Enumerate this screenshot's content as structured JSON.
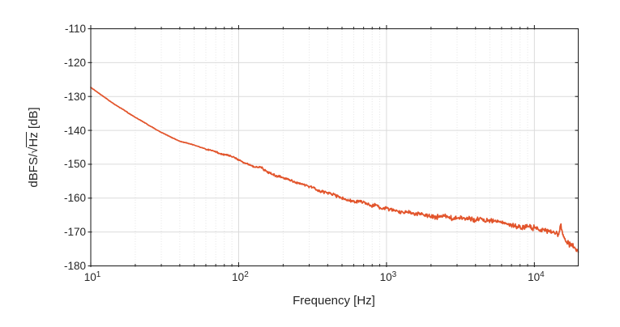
{
  "chart_data": {
    "type": "line",
    "title": "",
    "xlabel": "Frequency [Hz]",
    "ylabel": "dBFS/√Hz [dB]",
    "ylabel_parts": {
      "pre": "dBFS/",
      "radical": "√",
      "under": "Hz",
      "post": " [dB]"
    },
    "x_scale": "log",
    "xlim": [
      10,
      19800
    ],
    "ylim": [
      -180,
      -110
    ],
    "x_major_ticks": [
      {
        "value": 10,
        "base": "10",
        "exp": "1"
      },
      {
        "value": 100,
        "base": "10",
        "exp": "2"
      },
      {
        "value": 1000,
        "base": "10",
        "exp": "3"
      },
      {
        "value": 10000,
        "base": "10",
        "exp": "4"
      }
    ],
    "y_ticks": [
      -110,
      -120,
      -130,
      -140,
      -150,
      -160,
      -170,
      -180
    ],
    "grid": {
      "horizontal": "solid-major",
      "vertical_major": "solid",
      "vertical_minor": "dotted"
    },
    "legend": "none",
    "series": [
      {
        "name": "noise-spectral-density",
        "color": "#E2542B",
        "anchors": [
          [
            10,
            -127.3
          ],
          [
            12,
            -129.8
          ],
          [
            14,
            -131.9
          ],
          [
            17,
            -134.2
          ],
          [
            20,
            -136.2
          ],
          [
            25,
            -138.6
          ],
          [
            30,
            -140.6
          ],
          [
            35,
            -142.0
          ],
          [
            40,
            -143.2
          ],
          [
            45,
            -143.8
          ],
          [
            50,
            -144.4
          ],
          [
            60,
            -145.4
          ],
          [
            70,
            -146.4
          ],
          [
            75,
            -147.0
          ],
          [
            85,
            -147.4
          ],
          [
            100,
            -148.6
          ],
          [
            115,
            -149.9
          ],
          [
            130,
            -151.2
          ],
          [
            140,
            -150.9
          ],
          [
            160,
            -152.2
          ],
          [
            180,
            -153.2
          ],
          [
            200,
            -154.0
          ],
          [
            230,
            -155.0
          ],
          [
            260,
            -155.7
          ],
          [
            300,
            -156.7
          ],
          [
            350,
            -157.8
          ],
          [
            400,
            -158.6
          ],
          [
            450,
            -159.4
          ],
          [
            500,
            -160.0
          ],
          [
            600,
            -160.9
          ],
          [
            700,
            -161.5
          ],
          [
            800,
            -162.1
          ],
          [
            900,
            -162.6
          ],
          [
            1000,
            -163.0
          ],
          [
            1200,
            -163.7
          ],
          [
            1400,
            -164.2
          ],
          [
            1700,
            -164.8
          ],
          [
            2000,
            -165.2
          ],
          [
            2500,
            -165.7
          ],
          [
            3000,
            -166.0
          ],
          [
            4000,
            -166.5
          ],
          [
            5000,
            -166.9
          ],
          [
            6000,
            -167.3
          ],
          [
            7000,
            -167.6
          ],
          [
            8000,
            -167.9
          ],
          [
            9000,
            -168.1
          ],
          [
            10000,
            -168.4
          ],
          [
            11000,
            -168.9
          ],
          [
            12000,
            -169.5
          ],
          [
            13000,
            -170.2
          ],
          [
            14000,
            -170.7
          ],
          [
            14600,
            -171.0
          ],
          [
            15100,
            -168.3
          ],
          [
            15600,
            -171.5
          ],
          [
            16500,
            -172.4
          ],
          [
            17500,
            -173.3
          ],
          [
            18500,
            -174.3
          ],
          [
            19300,
            -175.0
          ],
          [
            19800,
            -175.6
          ]
        ],
        "noise_profile": [
          [
            60,
            0.12
          ],
          [
            130,
            0.3
          ],
          [
            300,
            0.45
          ],
          [
            700,
            0.6
          ],
          [
            2000,
            0.8
          ],
          [
            6000,
            0.95
          ],
          [
            12000,
            1.1
          ],
          [
            1000000,
            1.25
          ]
        ]
      }
    ]
  },
  "layout_colors": {
    "background": "#FFFFFF",
    "axis": "#262626",
    "text": "#262626",
    "grid_major": "#DBDBDB",
    "grid_minor": "#E4E4E4",
    "line": "#E2542B"
  }
}
